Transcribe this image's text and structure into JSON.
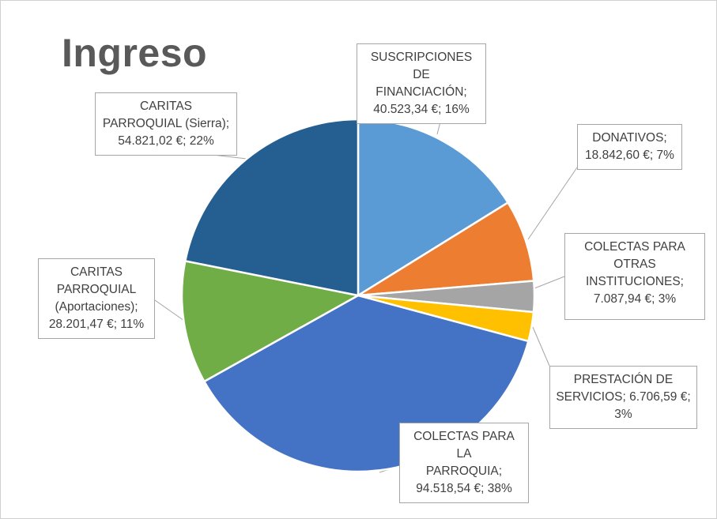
{
  "chart_data": {
    "type": "pie",
    "title": "Ingreso",
    "legend": "none",
    "colors": {
      "suscripciones": "#5B9BD5",
      "donativos": "#ED7D31",
      "colectas_otras": "#A5A5A5",
      "prestacion": "#FFC000",
      "colectas_parroquia": "#4472C4",
      "caritas_aportaciones": "#70AD47",
      "caritas_sierra": "#255E91"
    },
    "slices": [
      {
        "key": "suscripciones",
        "lines": [
          "SUSCRIPCIONES DE",
          "FINANCIACIÓN;",
          "40.523,34 €; 16%"
        ],
        "value": 40523.34,
        "percent": 16
      },
      {
        "key": "donativos",
        "lines": [
          "DONATIVOS;",
          "18.842,60 €; 7%"
        ],
        "value": 18842.6,
        "percent": 7
      },
      {
        "key": "colectas_otras",
        "lines": [
          "COLECTAS PARA",
          "OTRAS",
          "INSTITUCIONES;",
          "7.087,94 €; 3%"
        ],
        "value": 7087.94,
        "percent": 3
      },
      {
        "key": "prestacion",
        "lines": [
          "PRESTACIÓN DE",
          "SERVICIOS; 6.706,59 €;",
          "3%"
        ],
        "value": 6706.59,
        "percent": 3
      },
      {
        "key": "colectas_parroquia",
        "lines": [
          "COLECTAS PARA LA",
          "PARROQUIA;",
          "94.518,54 €; 38%"
        ],
        "value": 94518.54,
        "percent": 38
      },
      {
        "key": "caritas_aportaciones",
        "lines": [
          "CARITAS",
          "PARROQUIAL",
          "(Aportaciones);",
          "28.201,47 €; 11%"
        ],
        "value": 28201.47,
        "percent": 11
      },
      {
        "key": "caritas_sierra",
        "lines": [
          "CARITAS",
          "PARROQUIAL (Sierra);",
          "54.821,02 €; 22%"
        ],
        "value": 54821.02,
        "percent": 22
      }
    ]
  }
}
